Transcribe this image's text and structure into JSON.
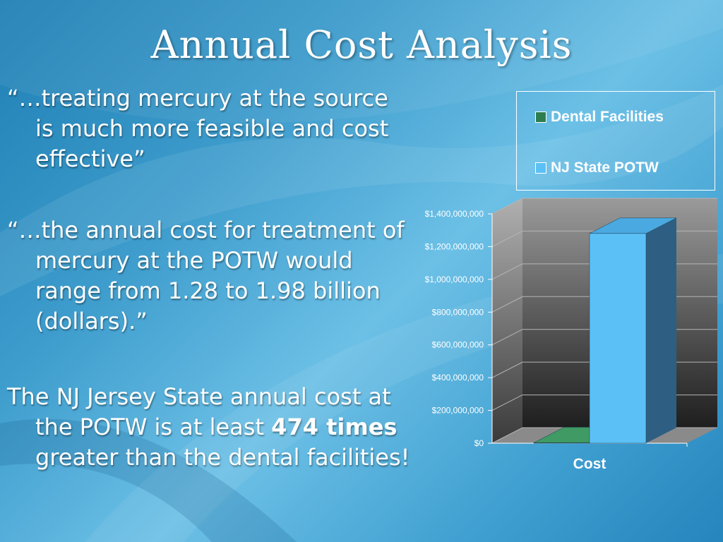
{
  "slide": {
    "title": "Annual Cost Analysis",
    "quote1": "“…treating mercury at the source is much more feasible and cost effective”",
    "quote2": "“…the annual cost for treatment of mercury at the POTW would range from 1.28  to 1.98 billion (dollars).”",
    "para3_a": "The NJ Jersey State annual cost at the POTW is at least ",
    "para3_bold": "474 times",
    "para3_b": " greater than the dental facilities!"
  },
  "colors": {
    "dental": "#2e7d4f",
    "potw": "#5bc0f5",
    "potw_side": "#2e5f82",
    "wall": "#3c3c3c"
  },
  "chart_data": {
    "type": "bar",
    "categories": [
      "Cost"
    ],
    "series": [
      {
        "name": "Dental Facilities",
        "values": [
          2700000
        ]
      },
      {
        "name": "NJ State POTW",
        "values": [
          1280000000
        ]
      }
    ],
    "ylim": [
      0,
      1400000000
    ],
    "yticks": [
      0,
      200000000,
      400000000,
      600000000,
      800000000,
      1000000000,
      1200000000,
      1400000000
    ],
    "ytick_labels": [
      "$0",
      "$200,000,000",
      "$400,000,000",
      "$600,000,000",
      "$800,000,000",
      "$1,000,000,000",
      "$1,200,000,000",
      "$1,400,000,000"
    ],
    "xlabel": "",
    "ylabel": "",
    "legend": "top-right",
    "grid": true,
    "style": "3d"
  }
}
